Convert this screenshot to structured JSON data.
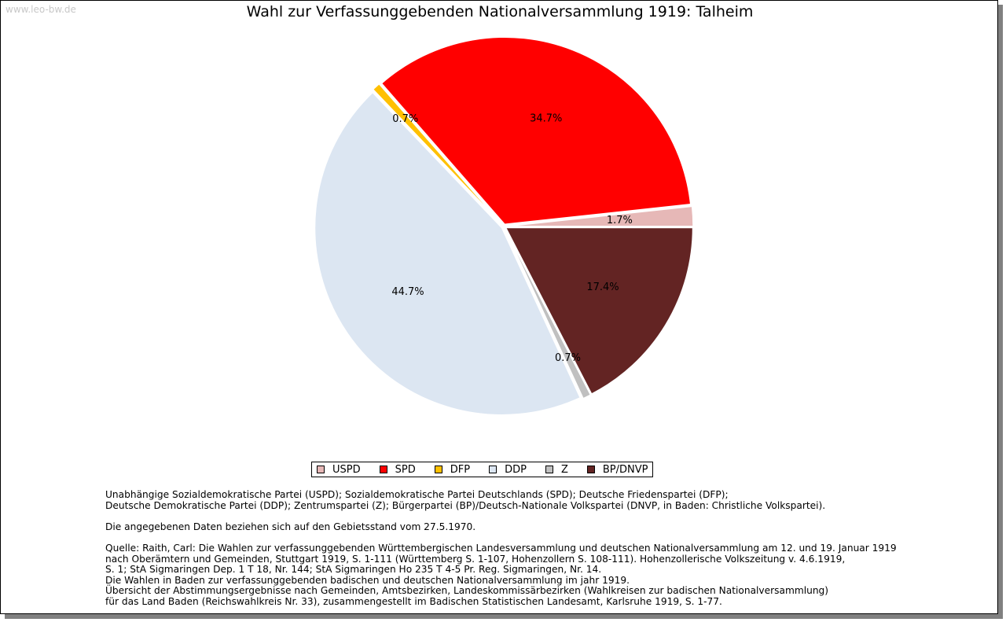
{
  "watermark": "www.leo-bw.de",
  "chart_data": {
    "type": "pie",
    "title": "Wahl zur Verfassunggebenden Nationalversammlung 1919: Talheim",
    "slices": [
      {
        "name": "USPD",
        "value": 1.7,
        "label": "1.7%",
        "color": "#e6b8b7"
      },
      {
        "name": "SPD",
        "value": 34.7,
        "label": "34.7%",
        "color": "#ff0000"
      },
      {
        "name": "DFP",
        "value": 0.7,
        "label": "0.7%",
        "color": "#ffc000"
      },
      {
        "name": "DDP",
        "value": 44.7,
        "label": "44.7%",
        "color": "#dce6f2"
      },
      {
        "name": "Z",
        "value": 0.7,
        "label": "0.7%",
        "color": "#c0c0c0"
      },
      {
        "name": "BP/DNVP",
        "value": 17.4,
        "label": "17.4%",
        "color": "#632423"
      }
    ],
    "legend_placement": "bottom-center"
  },
  "notes": {
    "block1": [
      "Unabhängige Sozialdemokratische Partei (USPD); Sozialdemokratische Partei Deutschlands (SPD); Deutsche Friedenspartei (DFP);",
      "Deutsche Demokratische Partei (DDP); Zentrumspartei (Z); Bürgerpartei (BP)/Deutsch-Nationale Volkspartei (DNVP, in Baden: Christliche Volkspartei)."
    ],
    "block2": [
      "Die angegebenen Daten beziehen sich auf den Gebietsstand vom 27.5.1970."
    ],
    "block3": [
      "Quelle: Raith, Carl: Die Wahlen zur verfassunggebenden Württembergischen Landesversammlung und deutschen Nationalversammlung am 12. und 19. Januar 1919",
      "nach Oberämtern und Gemeinden, Stuttgart 1919, S. 1-111 (Württemberg S. 1-107, Hohenzollern S. 108-111). Hohenzollerische Volkszeitung v. 4.6.1919,",
      "S. 1; StA Sigmaringen Dep. 1 T 18, Nr. 144; StA Sigmaringen Ho 235 T 4-5 Pr. Reg. Sigmaringen, Nr. 14.",
      "Die Wahlen in Baden zur verfassunggebenden badischen und deutschen Nationalversammlung im jahr 1919.",
      "Übersicht der Abstimmungsergebnisse nach Gemeinden, Amtsbezirken, Landeskommissärbezirken (Wahlkreisen zur badischen Nationalversammlung)",
      "für das Land Baden (Reichswahlkreis Nr. 33), zusammengestellt im Badischen Statistischen Landesamt, Karlsruhe 1919, S. 1-77."
    ]
  }
}
